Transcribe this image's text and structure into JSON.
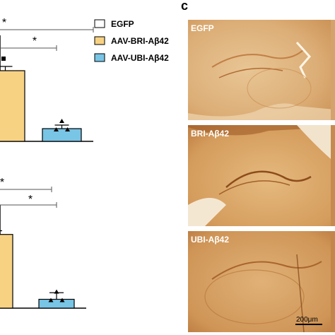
{
  "panel_c_label": "c",
  "legend": [
    {
      "label": "EGFP",
      "color": "#ffffff"
    },
    {
      "label": "AAV-BRI-Aβ42",
      "color": "#f7d283"
    },
    {
      "label": "AAV-UBI-Aβ42",
      "color": "#78c5e6"
    }
  ],
  "significance_marker": "*",
  "micrographs": [
    {
      "label": "EGFP"
    },
    {
      "label": "BRI-Aβ42"
    },
    {
      "label": "UBI-Aβ42"
    }
  ],
  "scale_bar_label": "200μm",
  "colors": {
    "egfp": "#ffffff",
    "bri": "#f7d283",
    "ubi": "#78c5e6",
    "tissue_light": "#e2b884",
    "tissue_dark": "#9c5a24"
  },
  "chart_data": [
    {
      "type": "bar",
      "categories": [
        "AAV-BRI-Aβ42",
        "AAV-UBI-Aβ42"
      ],
      "values": [
        100,
        18
      ],
      "errors": [
        6,
        5
      ]
    },
    {
      "type": "bar",
      "categories": [
        "AAV-BRI-Aβ42",
        "AAV-UBI-Aβ42"
      ],
      "values": [
        100,
        12
      ],
      "errors": [
        5,
        9
      ]
    }
  ]
}
